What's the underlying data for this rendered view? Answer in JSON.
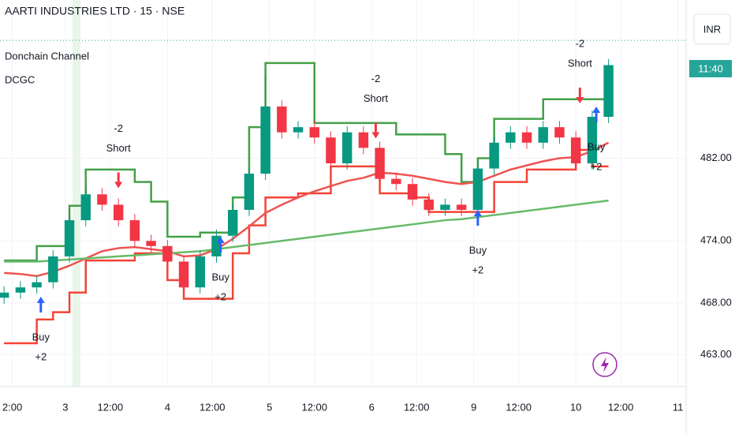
{
  "chart_data": {
    "type": "candlestick",
    "title": "AARTI INDUSTRIES LTD · 15 · NSE",
    "indicators": [
      "Donchain Channel",
      "DCGC"
    ],
    "currency": "INR",
    "countdown": "11:40",
    "last_price": 493.4,
    "xlim": [
      0,
      168
    ],
    "ylim": [
      459.9,
      497.3
    ],
    "xticks": [
      {
        "value": 3,
        "label": "2:00"
      },
      {
        "value": 16,
        "label": "3"
      },
      {
        "value": 27,
        "label": "12:00"
      },
      {
        "value": 41,
        "label": "4"
      },
      {
        "value": 52,
        "label": "12:00"
      },
      {
        "value": 66,
        "label": "5"
      },
      {
        "value": 77,
        "label": "12:00"
      },
      {
        "value": 91,
        "label": "6"
      },
      {
        "value": 102,
        "label": "12:00"
      },
      {
        "value": 116,
        "label": "9"
      },
      {
        "value": 127,
        "label": "12:00"
      },
      {
        "value": 141,
        "label": "10"
      },
      {
        "value": 152,
        "label": "12:00"
      },
      {
        "value": 166,
        "label": "11"
      }
    ],
    "yticks": [
      {
        "value": 482,
        "label": "482.00"
      },
      {
        "value": 474,
        "label": "474.00"
      },
      {
        "value": 468,
        "label": "468.00"
      },
      {
        "value": 463,
        "label": "463.00"
      }
    ],
    "grid": true,
    "up_color": "#089981",
    "down_color": "#f23645",
    "x": [
      1,
      5,
      9,
      13,
      17,
      21,
      25,
      29,
      33,
      37,
      41,
      45,
      49,
      53,
      57,
      61,
      65,
      69,
      73,
      77,
      81,
      85,
      89,
      93,
      97,
      101,
      105,
      109,
      113,
      117,
      121,
      125,
      129,
      133,
      137,
      141,
      145,
      149
    ],
    "open": [
      468.5,
      469.0,
      469.5,
      470.0,
      472.5,
      476.0,
      478.5,
      477.5,
      476.0,
      474.0,
      473.5,
      472.0,
      469.5,
      472.5,
      474.5,
      477.0,
      480.5,
      487.0,
      484.5,
      485.0,
      484.0,
      481.5,
      484.5,
      483.0,
      480.0,
      479.5,
      478.0,
      477.0,
      477.5,
      477.0,
      481.0,
      483.5,
      484.5,
      483.5,
      485.0,
      484.0,
      481.5,
      486.0
    ],
    "high": [
      469.6,
      470.1,
      470.6,
      473.1,
      476.6,
      479.1,
      479.1,
      478.1,
      476.6,
      474.6,
      474.1,
      472.6,
      473.1,
      475.1,
      477.6,
      481.1,
      490.0,
      487.6,
      485.6,
      485.6,
      484.6,
      485.1,
      485.1,
      483.6,
      480.6,
      480.1,
      478.6,
      478.1,
      478.1,
      481.6,
      484.1,
      485.1,
      485.1,
      485.6,
      485.6,
      484.6,
      486.6,
      491.6
    ],
    "low": [
      467.9,
      468.4,
      468.9,
      469.4,
      471.9,
      475.4,
      476.9,
      475.4,
      473.4,
      472.9,
      471.4,
      468.9,
      468.9,
      471.9,
      473.9,
      476.4,
      479.9,
      483.9,
      483.9,
      483.4,
      480.9,
      480.9,
      482.4,
      479.4,
      478.9,
      477.4,
      476.4,
      476.4,
      476.4,
      476.4,
      480.4,
      482.9,
      482.9,
      482.9,
      483.4,
      480.9,
      480.9,
      485.4
    ],
    "close": [
      469.0,
      469.5,
      470.0,
      472.5,
      476.0,
      478.5,
      477.5,
      476.0,
      474.0,
      473.5,
      472.0,
      469.5,
      472.5,
      474.5,
      477.0,
      480.5,
      487.0,
      484.5,
      485.0,
      484.0,
      481.5,
      484.5,
      483.0,
      480.0,
      479.5,
      478.0,
      477.0,
      477.5,
      477.0,
      481.0,
      483.5,
      484.5,
      483.5,
      485.0,
      484.0,
      481.5,
      486.0,
      491.0
    ],
    "lines": [
      {
        "color": "#43a047",
        "step": true,
        "values": [
          472.1,
          472.1,
          473.5,
          473.5,
          477.4,
          480.9,
          480.9,
          480.9,
          479.7,
          477.8,
          474.4,
          474.4,
          474.8,
          474.8,
          478.2,
          485.0,
          491.2,
          491.2,
          491.2,
          485.4,
          485.4,
          485.4,
          485.4,
          485.4,
          484.3,
          484.3,
          484.3,
          482.4,
          479.7,
          482.0,
          485.8,
          485.8,
          485.8,
          487.7,
          487.7,
          487.7,
          487.7,
          487.7
        ]
      },
      {
        "color": "#f44336",
        "step": true,
        "values": [
          464.1,
          464.1,
          466.4,
          467.1,
          469.0,
          472.1,
          472.1,
          472.1,
          472.8,
          472.8,
          470.2,
          468.4,
          468.4,
          468.4,
          472.8,
          475.5,
          478.2,
          478.2,
          478.6,
          478.6,
          481.2,
          481.2,
          481.2,
          478.6,
          478.6,
          478.2,
          476.8,
          476.8,
          476.8,
          476.8,
          479.7,
          479.7,
          480.9,
          480.9,
          480.9,
          482.8,
          481.2,
          481.2
        ]
      },
      {
        "color": "#ef5350",
        "step": false,
        "values": [
          470.9,
          470.8,
          470.6,
          471.0,
          471.6,
          472.3,
          473.0,
          473.3,
          473.4,
          473.2,
          473.0,
          472.5,
          472.6,
          473.2,
          474.2,
          475.4,
          476.7,
          477.5,
          478.2,
          478.8,
          479.3,
          479.8,
          480.1,
          480.6,
          480.5,
          480.3,
          480.0,
          479.7,
          479.5,
          479.7,
          480.3,
          480.9,
          481.3,
          481.7,
          482.0,
          482.1,
          482.7,
          483.5
        ]
      },
      {
        "color": "#66bb6a",
        "step": false,
        "values": [
          472.0,
          472.0,
          472.0,
          472.1,
          472.2,
          472.3,
          472.4,
          472.5,
          472.6,
          472.7,
          472.8,
          472.9,
          473.0,
          473.2,
          473.4,
          473.6,
          473.8,
          474.0,
          474.2,
          474.4,
          474.6,
          474.8,
          475.0,
          475.2,
          475.4,
          475.6,
          475.8,
          476.0,
          476.1,
          476.3,
          476.5,
          476.7,
          476.9,
          477.1,
          477.3,
          477.5,
          477.7,
          477.9
        ]
      }
    ],
    "signals": [
      {
        "label": "Buy",
        "qty": "+2",
        "x": 10,
        "price": 468.6
      },
      {
        "label": "Short",
        "qty": "-2",
        "x": 29,
        "price": 479.1
      },
      {
        "label": "Buy",
        "qty": "+2",
        "x": 54,
        "price": 474.4
      },
      {
        "label": "Short",
        "qty": "-2",
        "x": 92,
        "price": 483.9
      },
      {
        "label": "Buy",
        "qty": "+2",
        "x": 117,
        "price": 477.0
      },
      {
        "label": "Short",
        "qty": "-2",
        "x": 142,
        "price": 487.3
      },
      {
        "label": "Buy",
        "qty": "+2",
        "x": 146,
        "price": 487.0
      }
    ]
  }
}
